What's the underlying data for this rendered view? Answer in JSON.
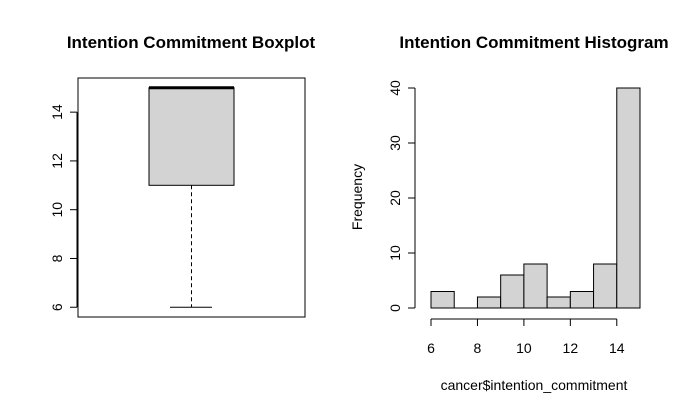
{
  "chart_data": [
    {
      "type": "box",
      "title": "Intention Commitment Boxplot",
      "xlabel": "",
      "ylabel": "",
      "ylim": [
        5.6,
        15.4
      ],
      "yticks": [
        6,
        8,
        10,
        12,
        14
      ],
      "stats": {
        "min": 6,
        "q1": 11,
        "median": 15,
        "q3": 15,
        "max": 15
      },
      "colors": {
        "box_fill": "#d3d3d3",
        "line": "#000000"
      }
    },
    {
      "type": "bar",
      "title": "Intention Commitment Histogram",
      "xlabel": "cancer$intention_commitment",
      "ylabel": "Frequency",
      "xlim": [
        6,
        15
      ],
      "ylim": [
        0,
        40
      ],
      "xticks": [
        6,
        8,
        10,
        12,
        14
      ],
      "yticks": [
        0,
        10,
        20,
        30,
        40
      ],
      "bins": [
        {
          "x0": 6,
          "x1": 7,
          "count": 3
        },
        {
          "x0": 7,
          "x1": 8,
          "count": 0
        },
        {
          "x0": 8,
          "x1": 9,
          "count": 2
        },
        {
          "x0": 9,
          "x1": 10,
          "count": 6
        },
        {
          "x0": 10,
          "x1": 11,
          "count": 8
        },
        {
          "x0": 11,
          "x1": 12,
          "count": 2
        },
        {
          "x0": 12,
          "x1": 13,
          "count": 3
        },
        {
          "x0": 13,
          "x1": 14,
          "count": 8
        },
        {
          "x0": 14,
          "x1": 15,
          "count": 40
        }
      ],
      "colors": {
        "bar_fill": "#d3d3d3",
        "line": "#000000"
      }
    }
  ]
}
